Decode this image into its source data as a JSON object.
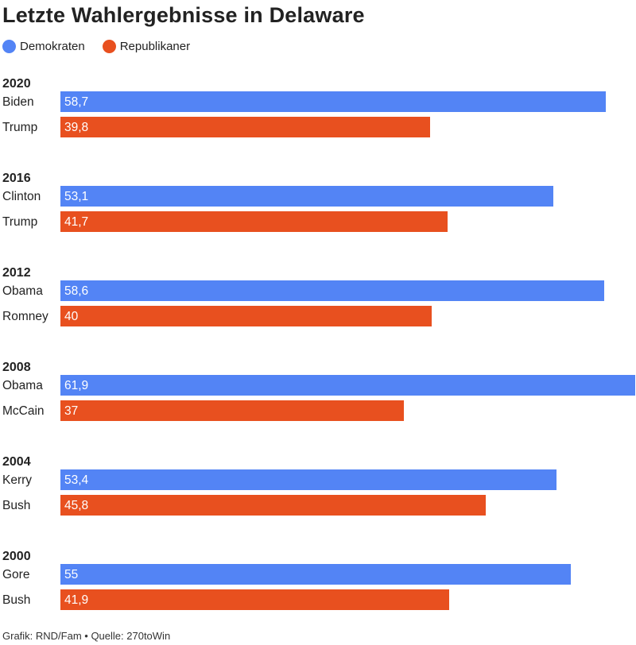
{
  "title": "Letzte Wahlergebnisse in Delaware",
  "legend": [
    {
      "label": "Demokraten",
      "color": "#5384f5"
    },
    {
      "label": "Republikaner",
      "color": "#e8501f"
    }
  ],
  "footer": "Grafik: RND/Fam • Quelle: 270toWin",
  "chart_data": {
    "type": "bar",
    "orientation": "horizontal",
    "title": "Letzte Wahlergebnisse in Delaware",
    "xlim": [
      0,
      61.9
    ],
    "grid": false,
    "legend_position": "top-left",
    "series_colors": {
      "Demokraten": "#5384f5",
      "Republikaner": "#e8501f"
    },
    "groups": [
      {
        "year": "2020",
        "bars": [
          {
            "candidate": "Biden",
            "party": "Demokraten",
            "value": 58.7,
            "label": "58,7"
          },
          {
            "candidate": "Trump",
            "party": "Republikaner",
            "value": 39.8,
            "label": "39,8"
          }
        ]
      },
      {
        "year": "2016",
        "bars": [
          {
            "candidate": "Clinton",
            "party": "Demokraten",
            "value": 53.1,
            "label": "53,1"
          },
          {
            "candidate": "Trump",
            "party": "Republikaner",
            "value": 41.7,
            "label": "41,7"
          }
        ]
      },
      {
        "year": "2012",
        "bars": [
          {
            "candidate": "Obama",
            "party": "Demokraten",
            "value": 58.6,
            "label": "58,6"
          },
          {
            "candidate": "Romney",
            "party": "Republikaner",
            "value": 40,
            "label": "40"
          }
        ]
      },
      {
        "year": "2008",
        "bars": [
          {
            "candidate": "Obama",
            "party": "Demokraten",
            "value": 61.9,
            "label": "61,9"
          },
          {
            "candidate": "McCain",
            "party": "Republikaner",
            "value": 37,
            "label": "37"
          }
        ]
      },
      {
        "year": "2004",
        "bars": [
          {
            "candidate": "Kerry",
            "party": "Demokraten",
            "value": 53.4,
            "label": "53,4"
          },
          {
            "candidate": "Bush",
            "party": "Republikaner",
            "value": 45.8,
            "label": "45,8"
          }
        ]
      },
      {
        "year": "2000",
        "bars": [
          {
            "candidate": "Gore",
            "party": "Demokraten",
            "value": 55,
            "label": "55"
          },
          {
            "candidate": "Bush",
            "party": "Republikaner",
            "value": 41.9,
            "label": "41,9"
          }
        ]
      }
    ]
  }
}
